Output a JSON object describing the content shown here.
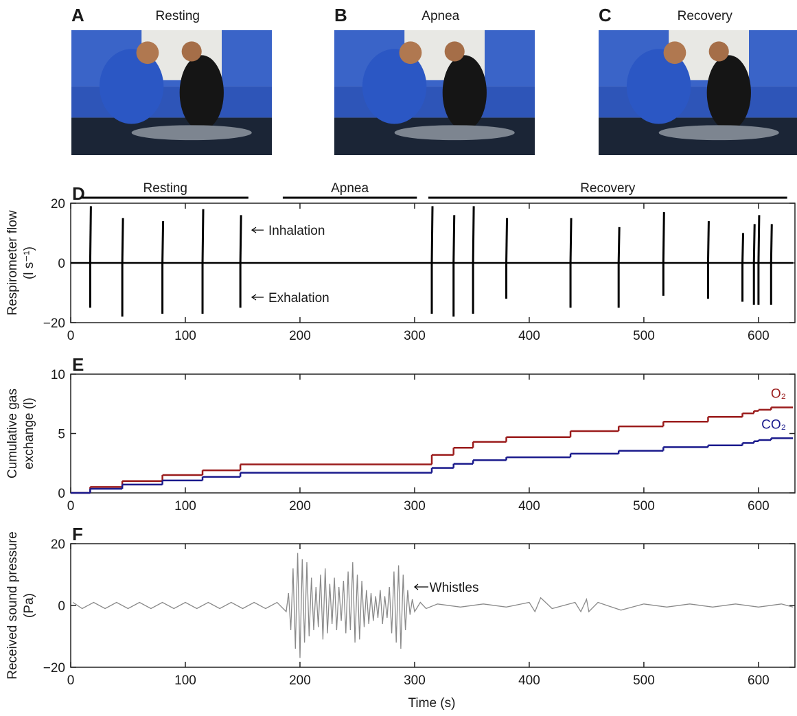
{
  "photos": [
    {
      "label": "A",
      "title": "Resting"
    },
    {
      "label": "B",
      "title": "Apnea"
    },
    {
      "label": "C",
      "title": "Recovery"
    }
  ],
  "chart_data": [
    {
      "type": "spike",
      "panel": "D",
      "ylabel": [
        "Respirometer flow",
        "(l s⁻¹)"
      ],
      "phases": [
        {
          "label": "Resting",
          "start": 10,
          "end": 155
        },
        {
          "label": "Apnea",
          "start": 185,
          "end": 302
        },
        {
          "label": "Recovery",
          "start": 312,
          "end": 625
        }
      ],
      "x": [
        17,
        45,
        80,
        115,
        148,
        315,
        334,
        351,
        380,
        436,
        478,
        517,
        556,
        586,
        596,
        600,
        611
      ],
      "series": [
        {
          "name": "Inhalation",
          "color": "#000000",
          "values": [
            19,
            15,
            14,
            18,
            16,
            19,
            16,
            19,
            15,
            15,
            12,
            17,
            14,
            10,
            13,
            16,
            13
          ]
        },
        {
          "name": "Exhalation",
          "color": "#000000",
          "values": [
            -15,
            -18,
            -17,
            -17,
            -15,
            -17,
            -18,
            -17,
            -12,
            -15,
            -15,
            -11,
            -12,
            -13,
            -14,
            -14,
            -14
          ]
        }
      ],
      "xlim": [
        0,
        630
      ],
      "xticks": [
        0,
        100,
        200,
        300,
        400,
        500,
        600
      ],
      "ylim": [
        -20,
        20
      ],
      "yticks": [
        {
          "value": -20,
          "label": "−20"
        },
        0,
        20
      ]
    },
    {
      "type": "step",
      "panel": "E",
      "ylabel": [
        "Cumulative gas",
        "exchange (l)"
      ],
      "x": [
        0,
        17,
        45,
        80,
        115,
        148,
        315,
        334,
        351,
        380,
        436,
        478,
        517,
        556,
        586,
        596,
        600,
        611,
        630
      ],
      "series": [
        {
          "name": "O₂",
          "color": "#9b1c1c",
          "values": [
            0,
            0.5,
            1.0,
            1.5,
            1.9,
            2.4,
            3.2,
            3.8,
            4.3,
            4.7,
            5.2,
            5.6,
            6.0,
            6.4,
            6.7,
            6.9,
            7.0,
            7.2,
            7.2
          ]
        },
        {
          "name": "CO₂",
          "color": "#1a1a8c",
          "values": [
            0,
            0.35,
            0.7,
            1.05,
            1.35,
            1.7,
            2.1,
            2.45,
            2.75,
            3.0,
            3.3,
            3.55,
            3.85,
            4.0,
            4.2,
            4.35,
            4.45,
            4.6,
            4.6
          ]
        }
      ],
      "xlim": [
        0,
        630
      ],
      "xticks": [
        0,
        100,
        200,
        300,
        400,
        500,
        600
      ],
      "ylim": [
        0,
        10
      ],
      "yticks": [
        0,
        5,
        10
      ]
    },
    {
      "type": "line",
      "panel": "F",
      "ylabel": [
        "Received sound pressure",
        "(Pa)"
      ],
      "xlabel": "Time (s)",
      "annotations": [
        "Whistles"
      ],
      "x": [
        2,
        10,
        20,
        30,
        40,
        50,
        60,
        70,
        80,
        90,
        100,
        110,
        120,
        130,
        140,
        150,
        160,
        170,
        180,
        188,
        190,
        192,
        194,
        196,
        198,
        200,
        202,
        204,
        206,
        208,
        210,
        212,
        214,
        216,
        218,
        220,
        222,
        224,
        226,
        228,
        230,
        232,
        234,
        236,
        238,
        240,
        242,
        244,
        246,
        248,
        250,
        252,
        254,
        256,
        258,
        260,
        262,
        264,
        266,
        268,
        270,
        272,
        274,
        276,
        278,
        280,
        282,
        284,
        286,
        288,
        290,
        292,
        294,
        296,
        298,
        300,
        305,
        310,
        320,
        340,
        360,
        380,
        400,
        405,
        410,
        420,
        440,
        445,
        450,
        452,
        460,
        480,
        500,
        520,
        540,
        560,
        580,
        600,
        620,
        630
      ],
      "series": [
        {
          "color": "#8a8a8a",
          "values": [
            1,
            -1,
            1,
            -1,
            1,
            -1,
            1,
            -1,
            1,
            -1,
            1,
            -1,
            1,
            -1,
            1,
            -1,
            1,
            -1,
            1,
            -2,
            4,
            -8,
            12,
            -14,
            17,
            -17,
            15,
            -12,
            14,
            -10,
            9,
            -8,
            6,
            -7,
            10,
            -11,
            12,
            -9,
            7,
            -6,
            9,
            -8,
            6,
            -5,
            8,
            -9,
            11,
            -8,
            14,
            -12,
            10,
            -11,
            8,
            -7,
            5,
            -6,
            4,
            -5,
            3,
            -4,
            5,
            -6,
            3,
            -4,
            6,
            -9,
            11,
            -12,
            13,
            -14,
            10,
            -8,
            5,
            -3,
            2,
            -2,
            1,
            -1,
            0.5,
            -0.5,
            0.5,
            -0.5,
            1,
            -2,
            2.5,
            -1,
            1,
            -2,
            2,
            -2,
            1,
            -1.5,
            0.5,
            -0.5,
            0.5,
            -0.5,
            0.5,
            -0.5,
            0.5,
            -0.5
          ]
        }
      ],
      "xlim": [
        0,
        630
      ],
      "xticks": [
        0,
        100,
        200,
        300,
        400,
        500,
        600
      ],
      "ylim": [
        -20,
        20
      ],
      "yticks": [
        {
          "value": -20,
          "label": "−20"
        },
        0,
        20
      ]
    }
  ]
}
